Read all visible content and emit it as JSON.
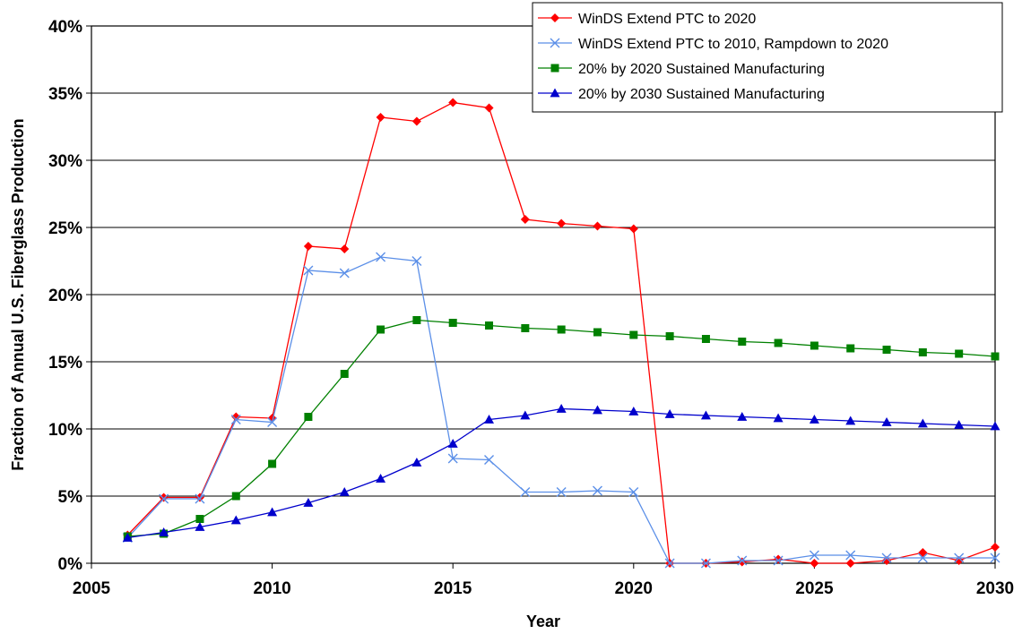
{
  "chart_data": {
    "type": "line",
    "title": "",
    "xlabel": "Year",
    "ylabel": "Fraction of Annual U.S. Fiberglass Production",
    "xlim": [
      2005,
      2030
    ],
    "ylim": [
      0,
      40
    ],
    "x_ticks": [
      "2005",
      "2010",
      "2015",
      "2020",
      "2025",
      "2030"
    ],
    "y_ticks": [
      "0%",
      "5%",
      "10%",
      "15%",
      "20%",
      "25%",
      "30%",
      "35%",
      "40%"
    ],
    "grid": "horizontal",
    "legend_position": "top-right",
    "x": [
      2006,
      2007,
      2008,
      2009,
      2010,
      2011,
      2012,
      2013,
      2014,
      2015,
      2016,
      2017,
      2018,
      2019,
      2020,
      2021,
      2022,
      2023,
      2024,
      2025,
      2026,
      2027,
      2028,
      2029,
      2030
    ],
    "series": [
      {
        "name": "WinDS Extend PTC to 2020",
        "color": "#ff0000",
        "marker": "diamond",
        "values": [
          2.1,
          4.9,
          4.9,
          10.9,
          10.8,
          23.6,
          23.4,
          33.2,
          32.9,
          34.3,
          33.9,
          25.6,
          25.3,
          25.1,
          24.9,
          0.0,
          0.0,
          0.1,
          0.3,
          0.0,
          0.0,
          0.2,
          0.8,
          0.2,
          1.2
        ]
      },
      {
        "name": "WinDS Extend PTC to 2010, Rampdown to 2020",
        "color": "#5b8fe8",
        "marker": "x",
        "values": [
          1.9,
          4.8,
          4.8,
          10.7,
          10.5,
          21.8,
          21.6,
          22.8,
          22.5,
          7.8,
          7.7,
          5.3,
          5.3,
          5.4,
          5.3,
          0.0,
          0.0,
          0.2,
          0.2,
          0.6,
          0.6,
          0.4,
          0.4,
          0.4,
          0.4
        ]
      },
      {
        "name": "20% by 2020 Sustained Manufacturing",
        "color": "#008000",
        "marker": "square",
        "values": [
          2.0,
          2.2,
          3.3,
          5.0,
          7.4,
          10.9,
          14.1,
          17.4,
          18.1,
          17.9,
          17.7,
          17.5,
          17.4,
          17.2,
          17.0,
          16.9,
          16.7,
          16.5,
          16.4,
          16.2,
          16.0,
          15.9,
          15.7,
          15.6,
          15.4
        ]
      },
      {
        "name": "20% by 2030 Sustained Manufacturing",
        "color": "#0000cc",
        "marker": "triangle",
        "values": [
          1.9,
          2.3,
          2.7,
          3.2,
          3.8,
          4.5,
          5.3,
          6.3,
          7.5,
          8.9,
          10.7,
          11.0,
          11.5,
          11.4,
          11.3,
          11.1,
          11.0,
          10.9,
          10.8,
          10.7,
          10.6,
          10.5,
          10.4,
          10.3,
          10.2
        ]
      }
    ]
  }
}
